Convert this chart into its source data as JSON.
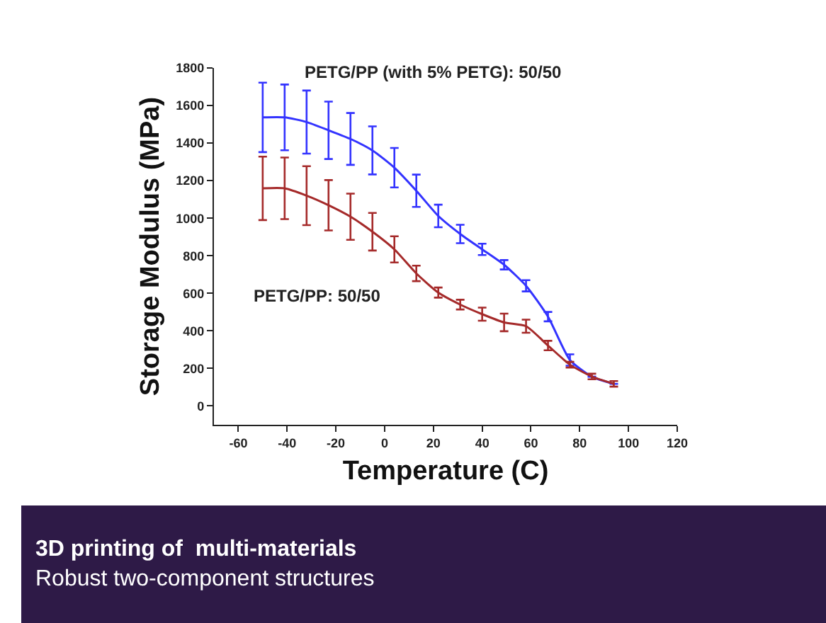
{
  "chart_data": {
    "type": "line",
    "title": "3D printing of  multi-materials",
    "subtitle": "Robust two-component structures",
    "xlabel": "Temperature (C)",
    "ylabel": "Storage Modulus (MPa)",
    "x": [
      -50,
      -41,
      -32,
      -23,
      -14,
      -5,
      4,
      13,
      22,
      31,
      40,
      49,
      58,
      67,
      76,
      85,
      94
    ],
    "series": [
      {
        "name": "PETG/PP (with 5% PETG): 50/50",
        "color": "#3333ff",
        "values": [
          1537,
          1537,
          1512,
          1468,
          1422,
          1361,
          1269,
          1146,
          1012,
          916,
          834,
          752,
          640,
          476,
          245,
          156,
          118
        ],
        "errors": [
          185,
          175,
          168,
          153,
          138,
          128,
          105,
          86,
          60,
          49,
          30,
          25,
          30,
          25,
          30,
          null,
          null
        ]
      },
      {
        "name": "PETG/PP: 50/50",
        "color": "#a52a2a",
        "values": [
          1159,
          1159,
          1120,
          1069,
          1008,
          928,
          834,
          706,
          604,
          540,
          489,
          445,
          425,
          322,
          220,
          157,
          118
        ],
        "errors": [
          169,
          164,
          157,
          134,
          123,
          100,
          70,
          41,
          27,
          26,
          35,
          47,
          35,
          25,
          15,
          15,
          15
        ]
      }
    ],
    "xlim": [
      -70,
      120
    ],
    "ylim": [
      -100,
      1800
    ],
    "xticks": [
      -60,
      -40,
      -20,
      0,
      20,
      40,
      60,
      80,
      100,
      120
    ],
    "yticks": [
      0,
      200,
      400,
      600,
      800,
      1000,
      1200,
      1400,
      1600,
      1800
    ],
    "legend": false,
    "marker": "none",
    "line_style": "solid"
  }
}
